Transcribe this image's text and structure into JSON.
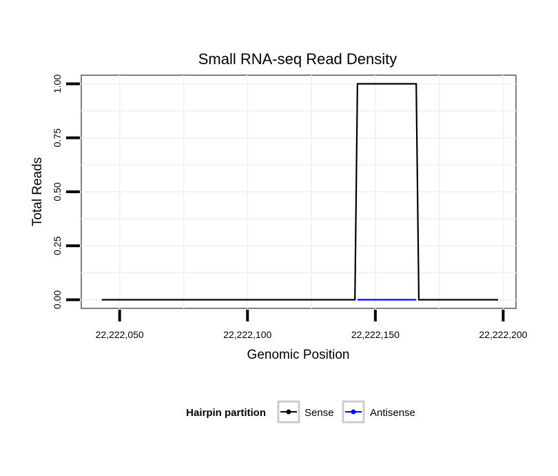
{
  "chart_data": {
    "type": "line",
    "title": "Small RNA-seq Read Density",
    "xlabel": "Genomic Position",
    "ylabel": "Total Reads",
    "xlim": [
      22222035,
      22222205
    ],
    "ylim": [
      -0.04,
      1.04
    ],
    "xticks": [
      22222050,
      22222100,
      22222150,
      22222200
    ],
    "xtick_labels": [
      "22,222,050",
      "22,222,100",
      "22,222,150",
      "22,222,200"
    ],
    "yticks": [
      0,
      0.25,
      0.5,
      0.75,
      1
    ],
    "ytick_labels": [
      "0.00",
      "0.25",
      "0.50",
      "0.75",
      "1.00"
    ],
    "grid": true,
    "legend": {
      "title": "Hairpin partition",
      "position": "bottom"
    },
    "series": [
      {
        "name": "Sense",
        "color": "#000000",
        "points": [
          [
            22222043,
            0
          ],
          [
            22222142,
            0
          ],
          [
            22222143,
            1
          ],
          [
            22222166,
            1
          ],
          [
            22222167,
            0
          ],
          [
            22222198,
            0
          ]
        ]
      },
      {
        "name": "Antisense",
        "color": "#0000ff",
        "points": [
          [
            22222143,
            0
          ],
          [
            22222166,
            0
          ]
        ]
      }
    ]
  }
}
